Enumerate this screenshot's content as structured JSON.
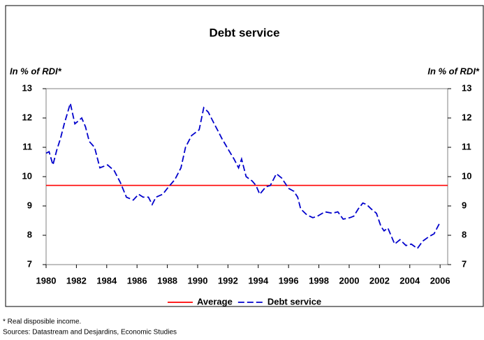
{
  "chart_data": {
    "type": "line",
    "title": "Debt service",
    "y_label": "In % of RDI*",
    "y2_label": "In % of RDI*",
    "xlim": [
      1980,
      2006.5
    ],
    "xticks": [
      1980,
      1982,
      1984,
      1986,
      1988,
      1990,
      1992,
      1994,
      1996,
      1998,
      2000,
      2002,
      2004,
      2006
    ],
    "ylim": [
      7,
      13
    ],
    "yticks": [
      7,
      8,
      9,
      10,
      11,
      12,
      13
    ],
    "y2lim": [
      7,
      13
    ],
    "y2ticks": [
      7,
      8,
      9,
      10,
      11,
      12,
      13
    ],
    "series": [
      {
        "name": "Average",
        "color": "#ff0000",
        "style": "solid",
        "x": [
          1980,
          2006.5
        ],
        "values": [
          9.7,
          9.7
        ]
      },
      {
        "name": "Debt service",
        "color": "#0000cc",
        "style": "dashed",
        "x": [
          1980,
          1980.2,
          1980.45,
          1980.7,
          1980.95,
          1981.2,
          1981.6,
          1981.9,
          1982.35,
          1982.6,
          1982.85,
          1983.2,
          1983.55,
          1984.05,
          1984.5,
          1984.9,
          1985.3,
          1985.75,
          1986.1,
          1986.4,
          1986.75,
          1987.0,
          1987.25,
          1987.7,
          1988.0,
          1988.5,
          1988.9,
          1989.2,
          1989.6,
          1990.1,
          1990.4,
          1990.7,
          1991.1,
          1991.4,
          1991.6,
          1992.05,
          1992.4,
          1992.7,
          1992.9,
          1993.2,
          1993.6,
          1993.85,
          1994.1,
          1994.5,
          1994.8,
          1995.2,
          1995.55,
          1996.0,
          1996.35,
          1996.6,
          1996.8,
          1997.2,
          1997.6,
          1997.9,
          1998.4,
          1998.9,
          1999.25,
          1999.6,
          2000.05,
          2000.3,
          2000.6,
          2000.9,
          2001.15,
          2001.45,
          2001.8,
          2002.1,
          2002.3,
          2002.55,
          2003.0,
          2003.35,
          2003.75,
          2004.1,
          2004.5,
          2004.85,
          2005.25,
          2005.6,
          2006.0
        ],
        "values": [
          10.8,
          10.85,
          10.4,
          10.9,
          11.3,
          11.8,
          12.5,
          11.8,
          12.0,
          11.7,
          11.2,
          11.0,
          10.3,
          10.4,
          10.2,
          9.8,
          9.3,
          9.2,
          9.4,
          9.3,
          9.3,
          9.05,
          9.3,
          9.4,
          9.6,
          9.9,
          10.3,
          11.0,
          11.4,
          11.6,
          12.35,
          12.2,
          11.8,
          11.5,
          11.3,
          10.9,
          10.6,
          10.3,
          10.6,
          10.0,
          9.85,
          9.7,
          9.4,
          9.65,
          9.7,
          10.1,
          9.95,
          9.6,
          9.5,
          9.3,
          8.9,
          8.7,
          8.6,
          8.65,
          8.8,
          8.75,
          8.8,
          8.55,
          8.6,
          8.65,
          8.9,
          9.1,
          9.05,
          8.9,
          8.75,
          8.3,
          8.15,
          8.25,
          7.7,
          7.85,
          7.65,
          7.7,
          7.55,
          7.8,
          7.95,
          8.05,
          8.45
        ]
      }
    ],
    "legend": "bottom",
    "notes": [
      "* Real disposible income.",
      "Sources: Datastream and Desjardins, Economic Studies"
    ]
  }
}
